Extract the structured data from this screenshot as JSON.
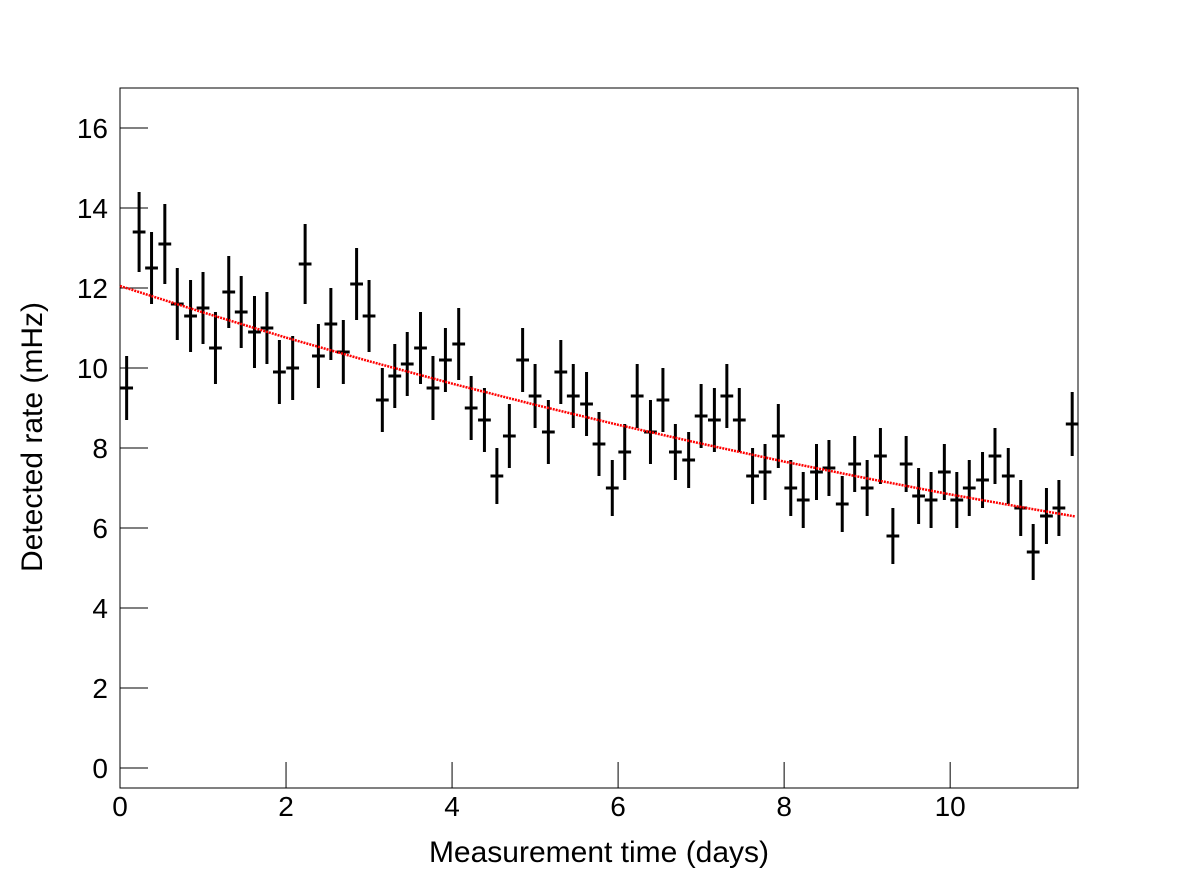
{
  "chart_data": {
    "type": "errorbar",
    "x_label": "Measurement time (days)",
    "y_label": "Detected rate (mHz)",
    "xlim": [
      0,
      11.54
    ],
    "ylim": [
      -0.5,
      17
    ],
    "xticks": [
      0,
      2,
      4,
      6,
      8,
      10
    ],
    "yticks": [
      0,
      2,
      4,
      6,
      8,
      10,
      12,
      14,
      16
    ],
    "series": [
      {
        "color": "#000000",
        "x": [
          0.08,
          0.23,
          0.38,
          0.54,
          0.69,
          0.85,
          1.0,
          1.15,
          1.31,
          1.46,
          1.62,
          1.77,
          1.92,
          2.08,
          2.23,
          2.39,
          2.54,
          2.69,
          2.85,
          3.0,
          3.16,
          3.31,
          3.46,
          3.62,
          3.77,
          3.92,
          4.08,
          4.23,
          4.39,
          4.54,
          4.69,
          4.85,
          5.0,
          5.16,
          5.31,
          5.46,
          5.62,
          5.77,
          5.93,
          6.08,
          6.23,
          6.39,
          6.54,
          6.69,
          6.85,
          7.0,
          7.16,
          7.31,
          7.46,
          7.62,
          7.77,
          7.93,
          8.08,
          8.23,
          8.39,
          8.54,
          8.7,
          8.85,
          9.0,
          9.16,
          9.31,
          9.47,
          9.62,
          9.77,
          9.93,
          10.08,
          10.23,
          10.39,
          10.54,
          10.7,
          10.85,
          11.0,
          11.16,
          11.31,
          11.47
        ],
        "values": [
          9.5,
          13.4,
          12.5,
          13.1,
          11.6,
          11.3,
          11.5,
          10.5,
          11.9,
          11.4,
          10.9,
          11.0,
          9.9,
          10.0,
          12.6,
          10.3,
          11.1,
          10.4,
          12.1,
          11.3,
          9.2,
          9.8,
          10.1,
          10.5,
          9.5,
          10.2,
          10.6,
          9.0,
          8.7,
          7.3,
          8.3,
          10.2,
          9.3,
          8.4,
          9.9,
          9.3,
          9.1,
          8.1,
          7.0,
          7.9,
          9.3,
          8.4,
          9.2,
          7.9,
          7.7,
          8.8,
          8.7,
          9.3,
          8.7,
          7.3,
          7.4,
          8.3,
          7.0,
          6.7,
          7.4,
          7.5,
          6.6,
          7.6,
          7.0,
          7.8,
          5.8,
          7.6,
          6.8,
          6.7,
          7.4,
          6.7,
          7.0,
          7.2,
          7.8,
          7.3,
          6.5,
          5.4,
          6.3,
          6.5,
          8.6
        ],
        "errors": [
          0.8,
          1.0,
          0.9,
          1.0,
          0.9,
          0.9,
          0.9,
          0.9,
          0.9,
          0.9,
          0.9,
          0.9,
          0.8,
          0.8,
          1.0,
          0.8,
          0.9,
          0.8,
          0.9,
          0.9,
          0.8,
          0.8,
          0.8,
          0.9,
          0.8,
          0.8,
          0.9,
          0.8,
          0.8,
          0.7,
          0.8,
          0.8,
          0.8,
          0.8,
          0.8,
          0.8,
          0.8,
          0.8,
          0.7,
          0.7,
          0.8,
          0.8,
          0.8,
          0.7,
          0.7,
          0.8,
          0.8,
          0.8,
          0.8,
          0.7,
          0.7,
          0.8,
          0.7,
          0.7,
          0.7,
          0.7,
          0.7,
          0.7,
          0.7,
          0.7,
          0.7,
          0.7,
          0.7,
          0.7,
          0.7,
          0.7,
          0.7,
          0.7,
          0.7,
          0.7,
          0.7,
          0.7,
          0.7,
          0.7,
          0.8
        ]
      },
      {
        "color": "#ff0000",
        "style": "fit",
        "x": [
          0,
          1,
          2,
          3,
          4,
          5,
          6,
          7,
          8,
          9,
          10,
          11,
          11.5
        ],
        "values": [
          12.05,
          11.39,
          10.76,
          10.17,
          9.61,
          9.08,
          8.58,
          8.11,
          7.66,
          7.24,
          6.84,
          6.47,
          6.29
        ]
      }
    ]
  }
}
